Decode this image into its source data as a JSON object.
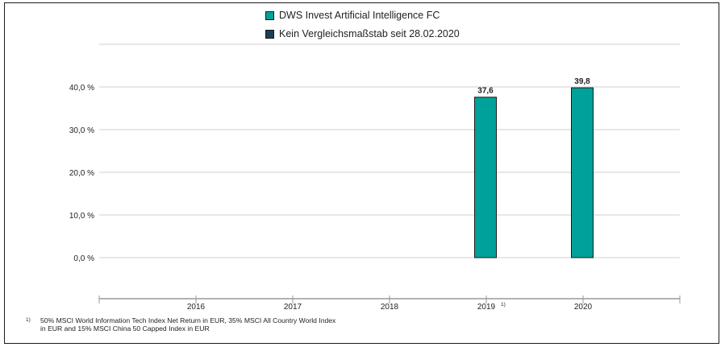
{
  "chart_data": {
    "type": "bar",
    "categories": [
      "2016",
      "2017",
      "2018",
      "2019",
      "2020"
    ],
    "category_superscripts": [
      "",
      "",
      "",
      "1)",
      ""
    ],
    "series": [
      {
        "name": "DWS Invest Artificial Intelligence  FC",
        "color": "#00a19a",
        "values": [
          null,
          null,
          null,
          37.6,
          39.8
        ],
        "data_labels": [
          "",
          "",
          "",
          "37,6",
          "39,8"
        ]
      },
      {
        "name": "Kein Vergleichsmaßstab seit 28.02.2020",
        "color": "#1c3f54",
        "values": [
          null,
          null,
          null,
          null,
          null
        ],
        "data_labels": [
          "",
          "",
          "",
          "",
          ""
        ]
      }
    ],
    "y_ticks": [
      0,
      10,
      20,
      30,
      40
    ],
    "y_tick_labels": [
      "0,0 %",
      "10,0 %",
      "20,0 %",
      "30,0 %",
      "40,0 %"
    ],
    "ylim": [
      0,
      40
    ],
    "grid": true,
    "legend_position": "top-center",
    "title": "",
    "xlabel": "",
    "ylabel": ""
  },
  "footnote": {
    "marker": "1)",
    "line1": "50% MSCI World Information Tech Index Net Return in EUR, 35% MSCI All Country World Index",
    "line2": "in EUR and 15% MSCI China 50 Capped Index in EUR"
  }
}
